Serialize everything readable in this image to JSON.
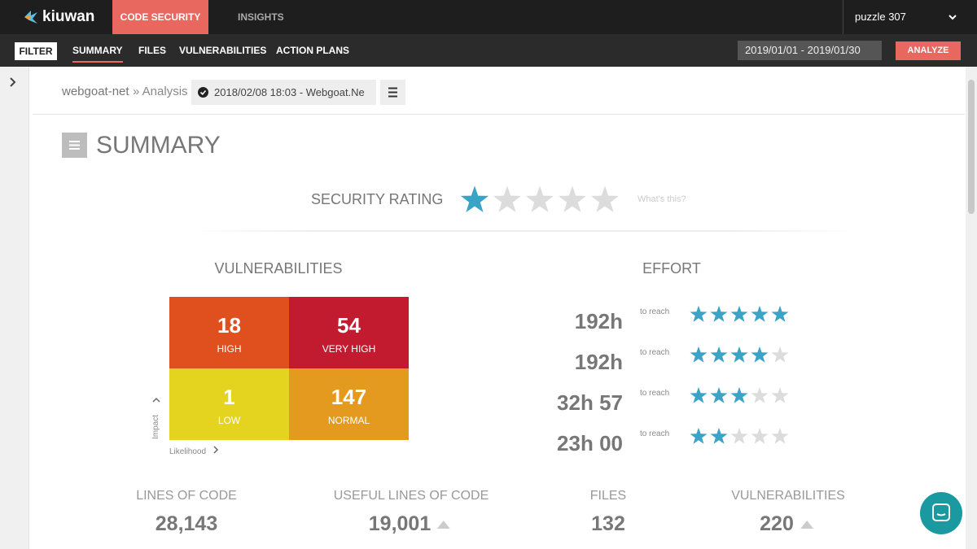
{
  "top_nav": {
    "brand": "kiuwan",
    "tabs": [
      "CODE SECURITY",
      "INSIGHTS"
    ],
    "account": "puzzle 307"
  },
  "sub_nav": {
    "filter": "FILTER",
    "tabs": [
      "SUMMARY",
      "FILES",
      "VULNERABILITIES",
      "ACTION PLANS"
    ],
    "date_range": "2019/01/01 - 2019/01/30",
    "analyze": "ANALYZE"
  },
  "breadcrumb": {
    "app": "webgoat-net",
    "section": "» Analysis",
    "analysis": "2018/02/08 18:03 - Webgoat.Ne"
  },
  "summary": {
    "title": "SUMMARY",
    "security_rating": {
      "label": "SECURITY RATING",
      "stars": 1,
      "max_stars": 5,
      "help": "What's this?"
    }
  },
  "vulnerabilities": {
    "title": "VULNERABILITIES",
    "y_axis": "Impact",
    "x_axis": "Likelihood",
    "cells": [
      {
        "count": "18",
        "label": "HIGH",
        "color": "#e0501e"
      },
      {
        "count": "54",
        "label": "VERY HIGH",
        "color": "#c21b2f"
      },
      {
        "count": "1",
        "label": "LOW",
        "color": "#e4d420"
      },
      {
        "count": "147",
        "label": "NORMAL",
        "color": "#e4991f"
      }
    ]
  },
  "effort": {
    "title": "EFFORT",
    "rows": [
      {
        "time": "192h",
        "note": "to reach",
        "stars": 5
      },
      {
        "time": "192h",
        "note": "to reach",
        "stars": 4
      },
      {
        "time": "32h 57",
        "note": "to reach",
        "stars": 3
      },
      {
        "time": "23h 00",
        "note": "to reach",
        "stars": 2
      }
    ]
  },
  "metrics": [
    {
      "label": "LINES OF CODE",
      "value": "28,143"
    },
    {
      "label": "USEFUL LINES OF CODE",
      "value": "19,001",
      "trend": "up"
    },
    {
      "label": "FILES",
      "value": "132"
    },
    {
      "label": "VULNERABILITIES",
      "value": "220",
      "trend": "up"
    }
  ]
}
